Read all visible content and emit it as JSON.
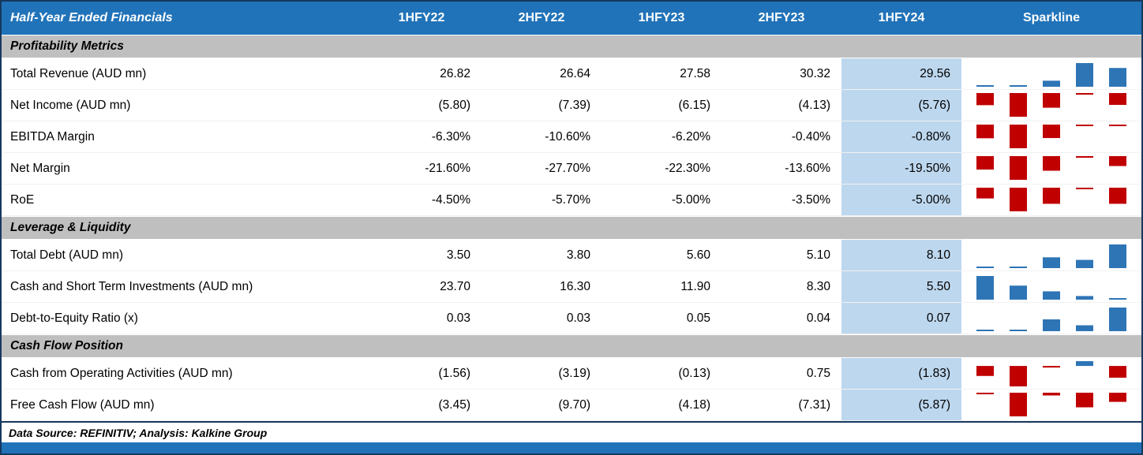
{
  "table": {
    "title": "Half-Year Ended Financials",
    "columns": [
      "1HFY22",
      "2HFY22",
      "1HFY23",
      "2HFY23",
      "1HFY24"
    ],
    "sparkline_header": "Sparkline",
    "highlighted_column": "1HFY24",
    "sections": [
      {
        "label": "Profitability Metrics",
        "rows": [
          {
            "label": "Total Revenue (AUD mn)",
            "display": [
              "26.82",
              "26.64",
              "27.58",
              "30.32",
              "29.56"
            ],
            "values": [
              26.82,
              26.64,
              27.58,
              30.32,
              29.56
            ]
          },
          {
            "label": "Net Income (AUD mn)",
            "display": [
              "(5.80)",
              "(7.39)",
              "(6.15)",
              "(4.13)",
              "(5.76)"
            ],
            "values": [
              -5.8,
              -7.39,
              -6.15,
              -4.13,
              -5.76
            ]
          },
          {
            "label": "EBITDA Margin",
            "display": [
              "-6.30%",
              "-10.60%",
              "-6.20%",
              "-0.40%",
              "-0.80%"
            ],
            "values": [
              -6.3,
              -10.6,
              -6.2,
              -0.4,
              -0.8
            ]
          },
          {
            "label": "Net Margin",
            "display": [
              "-21.60%",
              "-27.70%",
              "-22.30%",
              "-13.60%",
              "-19.50%"
            ],
            "values": [
              -21.6,
              -27.7,
              -22.3,
              -13.6,
              -19.5
            ]
          },
          {
            "label": "RoE",
            "display": [
              "-4.50%",
              "-5.70%",
              "-5.00%",
              "-3.50%",
              "-5.00%"
            ],
            "values": [
              -4.5,
              -5.7,
              -5.0,
              -3.5,
              -5.0
            ]
          }
        ]
      },
      {
        "label": "Leverage & Liquidity",
        "rows": [
          {
            "label": "Total Debt (AUD mn)",
            "display": [
              "3.50",
              "3.80",
              "5.60",
              "5.10",
              "8.10"
            ],
            "values": [
              3.5,
              3.8,
              5.6,
              5.1,
              8.1
            ]
          },
          {
            "label": "Cash and Short Term Investments (AUD mn)",
            "display": [
              "23.70",
              "16.30",
              "11.90",
              "8.30",
              "5.50"
            ],
            "values": [
              23.7,
              16.3,
              11.9,
              8.3,
              5.5
            ]
          },
          {
            "label": "Debt-to-Equity Ratio (x)",
            "display": [
              "0.03",
              "0.03",
              "0.05",
              "0.04",
              "0.07"
            ],
            "values": [
              0.03,
              0.03,
              0.05,
              0.04,
              0.07
            ]
          }
        ]
      },
      {
        "label": "Cash Flow Position",
        "rows": [
          {
            "label": "Cash from Operating Activities (AUD mn)",
            "display": [
              "(1.56)",
              "(3.19)",
              "(0.13)",
              "0.75",
              "(1.83)"
            ],
            "values": [
              -1.56,
              -3.19,
              -0.13,
              0.75,
              -1.83
            ]
          },
          {
            "label": "Free Cash Flow (AUD mn)",
            "display": [
              "(3.45)",
              "(9.70)",
              "(4.18)",
              "(7.31)",
              "(5.87)"
            ],
            "values": [
              -3.45,
              -9.7,
              -4.18,
              -7.31,
              -5.87
            ]
          }
        ]
      }
    ],
    "footer": "Data Source: REFINITIV; Analysis: Kalkine Group",
    "colors": {
      "header_bg": "#2173B9",
      "border": "#17375E",
      "section_bg": "#BFBFBF",
      "highlight_bg": "#BDD7EE",
      "spark_pos": "#2E75B6",
      "spark_neg": "#C00000"
    }
  },
  "chart_data": {
    "type": "table",
    "title": "Half-Year Ended Financials",
    "categories": [
      "1HFY22",
      "2HFY22",
      "1HFY23",
      "2HFY23",
      "1HFY24"
    ],
    "series": [
      {
        "name": "Total Revenue (AUD mn)",
        "section": "Profitability Metrics",
        "values": [
          26.82,
          26.64,
          27.58,
          30.32,
          29.56
        ]
      },
      {
        "name": "Net Income (AUD mn)",
        "section": "Profitability Metrics",
        "values": [
          -5.8,
          -7.39,
          -6.15,
          -4.13,
          -5.76
        ]
      },
      {
        "name": "EBITDA Margin (%)",
        "section": "Profitability Metrics",
        "values": [
          -6.3,
          -10.6,
          -6.2,
          -0.4,
          -0.8
        ]
      },
      {
        "name": "Net Margin (%)",
        "section": "Profitability Metrics",
        "values": [
          -21.6,
          -27.7,
          -22.3,
          -13.6,
          -19.5
        ]
      },
      {
        "name": "RoE (%)",
        "section": "Profitability Metrics",
        "values": [
          -4.5,
          -5.7,
          -5.0,
          -3.5,
          -5.0
        ]
      },
      {
        "name": "Total Debt (AUD mn)",
        "section": "Leverage & Liquidity",
        "values": [
          3.5,
          3.8,
          5.6,
          5.1,
          8.1
        ]
      },
      {
        "name": "Cash and Short Term Investments (AUD mn)",
        "section": "Leverage & Liquidity",
        "values": [
          23.7,
          16.3,
          11.9,
          8.3,
          5.5
        ]
      },
      {
        "name": "Debt-to-Equity Ratio (x)",
        "section": "Leverage & Liquidity",
        "values": [
          0.03,
          0.03,
          0.05,
          0.04,
          0.07
        ]
      },
      {
        "name": "Cash from Operating Activities (AUD mn)",
        "section": "Cash Flow Position",
        "values": [
          -1.56,
          -3.19,
          -0.13,
          0.75,
          -1.83
        ]
      },
      {
        "name": "Free Cash Flow (AUD mn)",
        "section": "Cash Flow Position",
        "values": [
          -3.45,
          -9.7,
          -4.18,
          -7.31,
          -5.87
        ]
      }
    ],
    "legend_position": "none",
    "notes": "Each row has a mini bar sparkline: blue bars for positive values, red for negative; 1HFY24 column highlighted light blue."
  }
}
